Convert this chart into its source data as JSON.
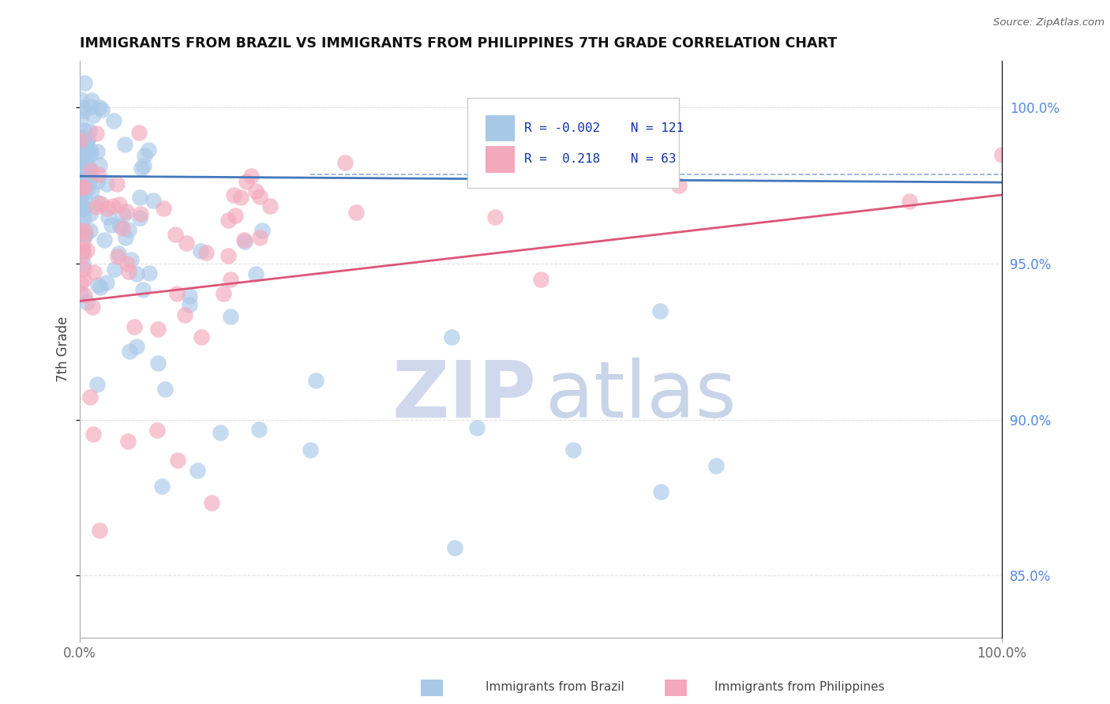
{
  "title": "IMMIGRANTS FROM BRAZIL VS IMMIGRANTS FROM PHILIPPINES 7TH GRADE CORRELATION CHART",
  "source": "Source: ZipAtlas.com",
  "ylabel": "7th Grade",
  "legend_brazil": {
    "R": "-0.002",
    "N": "121",
    "label": "Immigrants from Brazil"
  },
  "legend_philippines": {
    "R": "0.218",
    "N": "63",
    "label": "Immigrants from Philippines"
  },
  "color_brazil": "#a8c8e8",
  "color_philippines": "#f4a8bc",
  "color_trend_brazil": "#4477bb",
  "color_trend_philippines": "#dd5577",
  "xlim": [
    0,
    100
  ],
  "ylim": [
    83,
    101.5
  ],
  "yticks": [
    85.0,
    90.0,
    95.0,
    100.0
  ],
  "background_color": "#ffffff",
  "grid_color": "#cccccc",
  "brazil_trend_y0": 97.8,
  "brazil_trend_y1": 97.6,
  "phil_trend_y0": 93.8,
  "phil_trend_y1": 97.2,
  "brazil_dashed_y": 97.85,
  "watermark_zip_color": "#d0d8ee",
  "watermark_atlas_color": "#c8d4e8"
}
